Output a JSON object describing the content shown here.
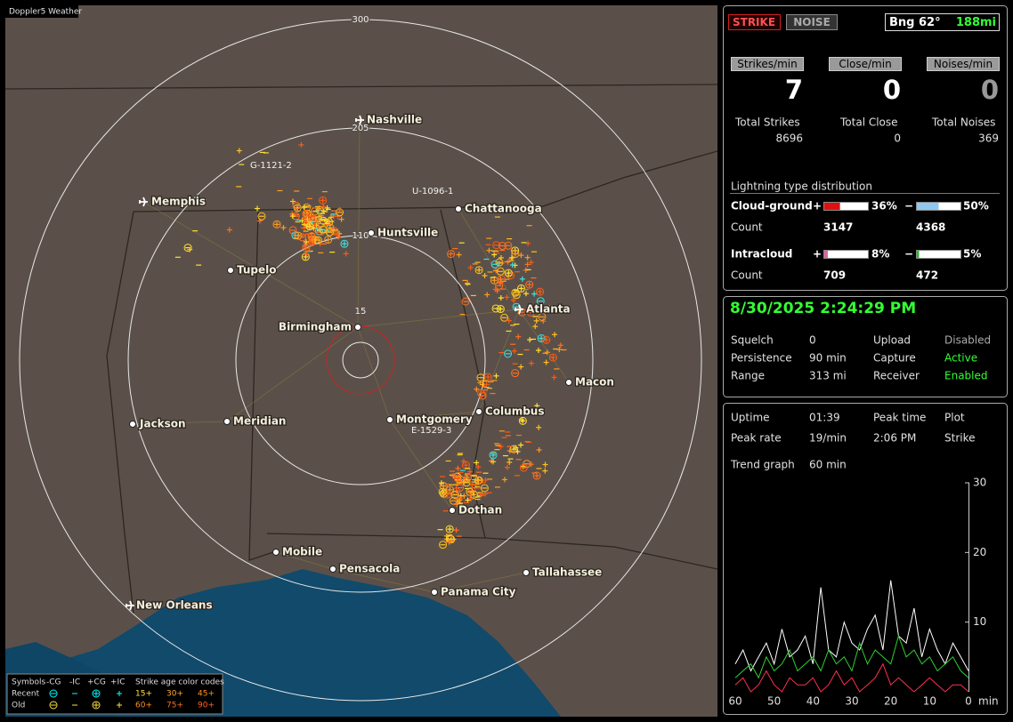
{
  "map": {
    "title": "Doppler5 Weather",
    "range_rings": [
      "300",
      "205",
      "110",
      "15"
    ],
    "cities": [
      {
        "name": "Nashville",
        "airport": true
      },
      {
        "name": "Memphis",
        "airport": true
      },
      {
        "name": "Chattanooga",
        "airport": false
      },
      {
        "name": "Huntsville",
        "airport": false
      },
      {
        "name": "Tupelo",
        "airport": false
      },
      {
        "name": "Atlanta",
        "airport": true
      },
      {
        "name": "Birmingham",
        "airport": false
      },
      {
        "name": "Macon",
        "airport": false
      },
      {
        "name": "Jackson",
        "airport": false
      },
      {
        "name": "Meridian",
        "airport": false
      },
      {
        "name": "Montgomery",
        "airport": false
      },
      {
        "name": "Columbus",
        "airport": false
      },
      {
        "name": "Dothan",
        "airport": false
      },
      {
        "name": "Mobile",
        "airport": false
      },
      {
        "name": "Pensacola",
        "airport": false
      },
      {
        "name": "Tallahassee",
        "airport": false
      },
      {
        "name": "Panama City",
        "airport": false
      },
      {
        "name": "New Orleans",
        "airport": true
      }
    ],
    "storm_labels": [
      "G-1121-2",
      "U-1096-1",
      "E-1529-3"
    ],
    "legend": {
      "title": "Symbols",
      "columns": [
        "-CG",
        "-IC",
        "+CG",
        "+IC"
      ],
      "age_title": "Strike age color codes",
      "rows": [
        {
          "name": "Recent",
          "ages": [
            "15+",
            "30+",
            "45+"
          ]
        },
        {
          "name": "Old",
          "ages": [
            "60+",
            "75+",
            "90+"
          ]
        }
      ]
    }
  },
  "panel": {
    "mode_buttons": [
      "STRIKE",
      "NOISE"
    ],
    "bearing": "Bng 62°",
    "distance": "188mi",
    "rates": [
      {
        "label": "Strikes/min",
        "value": 7
      },
      {
        "label": "Close/min",
        "value": 0
      },
      {
        "label": "Noises/min",
        "value": 0
      }
    ],
    "totals": [
      {
        "label": "Total Strikes",
        "value": 8696
      },
      {
        "label": "Total Close",
        "value": 0
      },
      {
        "label": "Total Noises",
        "value": 369
      }
    ],
    "distribution": {
      "title": "Lightning type distribution",
      "signs": [
        "+",
        "−"
      ],
      "count_label": "Count",
      "types": [
        {
          "name": "Cloud-ground",
          "plus": {
            "value": 36,
            "label": "36%",
            "count": 3147,
            "color": "#e01010"
          },
          "minus": {
            "value": 50,
            "label": "50%",
            "count": 4368,
            "color": "#90c8f0"
          }
        },
        {
          "name": "Intracloud",
          "plus": {
            "value": 8,
            "label": "8%",
            "count": 709,
            "color": "#e060a0"
          },
          "minus": {
            "value": 5,
            "label": "5%",
            "count": 472,
            "color": "#20c020"
          }
        }
      ]
    },
    "status": {
      "timestamp": "8/30/2025 2:24:29 PM",
      "rows": [
        [
          "Squelch",
          "0",
          "Upload",
          "Disabled"
        ],
        [
          "Persistence",
          "90 min",
          "Capture",
          "Active"
        ],
        [
          "Range",
          "313 mi",
          "Receiver",
          "Enabled"
        ]
      ]
    },
    "stats": {
      "rows": [
        [
          "Uptime",
          "01:39",
          "Peak time",
          "Plot"
        ],
        [
          "Peak rate",
          "19/min",
          "2:06 PM",
          "Strike"
        ],
        [
          "Trend graph",
          "60 min"
        ]
      ]
    }
  },
  "chart_data": {
    "type": "line",
    "x": [
      60,
      58,
      56,
      54,
      52,
      50,
      48,
      46,
      44,
      42,
      40,
      38,
      36,
      34,
      32,
      30,
      28,
      26,
      24,
      22,
      20,
      18,
      16,
      14,
      12,
      10,
      8,
      6,
      4,
      2,
      0
    ],
    "xlim": [
      60,
      0
    ],
    "xticks": [
      60,
      50,
      40,
      30,
      20,
      10,
      0
    ],
    "x_unit": "min",
    "ylim": [
      0,
      30
    ],
    "yticks": [
      10,
      20,
      30
    ],
    "series": [
      {
        "color": "#ffffff",
        "values": [
          4,
          6,
          3,
          5,
          7,
          4,
          9,
          5,
          6,
          8,
          4,
          15,
          6,
          5,
          10,
          7,
          6,
          9,
          11,
          6,
          16,
          8,
          7,
          12,
          5,
          9,
          6,
          4,
          7,
          5,
          3
        ]
      },
      {
        "color": "#30d030",
        "values": [
          2,
          3,
          4,
          2,
          5,
          3,
          4,
          6,
          3,
          4,
          5,
          3,
          6,
          4,
          5,
          3,
          7,
          4,
          6,
          5,
          4,
          8,
          5,
          6,
          4,
          5,
          3,
          4,
          5,
          3,
          2
        ]
      },
      {
        "color": "#ff3050",
        "values": [
          1,
          2,
          0,
          1,
          3,
          1,
          0,
          2,
          1,
          1,
          2,
          0,
          1,
          3,
          1,
          2,
          0,
          1,
          2,
          4,
          1,
          2,
          1,
          0,
          1,
          2,
          1,
          0,
          1,
          1,
          0
        ]
      }
    ]
  }
}
